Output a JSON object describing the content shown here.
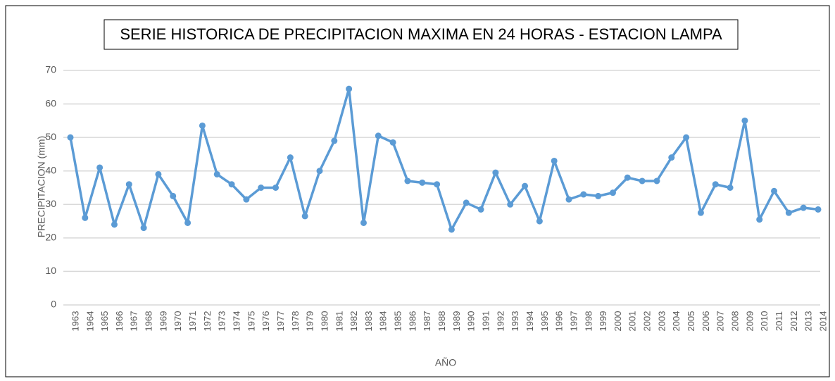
{
  "chart_data": {
    "type": "line",
    "title": "SERIE HISTORICA DE PRECIPITACION MAXIMA EN 24 HORAS - ESTACION LAMPA",
    "x_label": "AÑO",
    "y_label": "PRECIPITACION (mm)",
    "categories": [
      "1963",
      "1964",
      "1965",
      "1966",
      "1967",
      "1968",
      "1969",
      "1970",
      "1971",
      "1972",
      "1973",
      "1974",
      "1975",
      "1976",
      "1977",
      "1978",
      "1979",
      "1980",
      "1981",
      "1982",
      "1983",
      "1984",
      "1985",
      "1986",
      "1987",
      "1988",
      "1989",
      "1990",
      "1991",
      "1992",
      "1993",
      "1994",
      "1995",
      "1996",
      "1997",
      "1998",
      "1999",
      "2000",
      "2001",
      "2002",
      "2003",
      "2004",
      "2005",
      "2006",
      "2007",
      "2008",
      "2009",
      "2010",
      "2011",
      "2012",
      "2013",
      "2014"
    ],
    "series": [
      {
        "color": "#5b9bd5",
        "values": [
          50,
          26,
          41,
          24,
          36,
          23,
          39,
          32.5,
          24.5,
          53.5,
          39,
          36,
          31.5,
          35,
          35,
          44,
          26.5,
          40,
          49,
          64.5,
          24.5,
          50.5,
          48.5,
          37,
          36.5,
          36,
          22.5,
          30.5,
          28.5,
          39.5,
          30,
          35.5,
          25,
          43,
          31.5,
          33,
          32.5,
          33.5,
          38,
          37,
          37,
          44,
          50,
          27.5,
          36,
          35,
          55,
          25.5,
          34,
          27.5,
          29,
          28.5
        ]
      }
    ],
    "ylim": [
      0,
      70
    ],
    "yticks": [
      0,
      10,
      20,
      30,
      40,
      50,
      60,
      70
    ],
    "grid": true
  }
}
